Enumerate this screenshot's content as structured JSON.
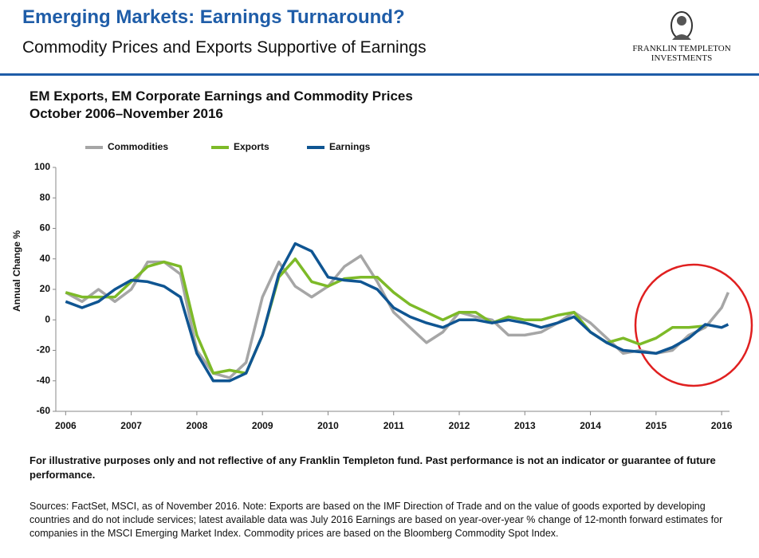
{
  "header": {
    "title": "Emerging Markets: Earnings Turnaround?",
    "subtitle": "Commodity Prices and Exports Supportive of Earnings",
    "logo_line1": "FRANKLIN TEMPLETON",
    "logo_line2": "INVESTMENTS"
  },
  "chart_data": {
    "type": "line",
    "title": "EM Exports, EM Corporate Earnings and Commodity Prices",
    "subtitle": "October 2006–November 2016",
    "ylabel": "Annual Change %",
    "x": [
      2006,
      2006.25,
      2006.5,
      2006.75,
      2007,
      2007.25,
      2007.5,
      2007.75,
      2008,
      2008.25,
      2008.5,
      2008.75,
      2009,
      2009.25,
      2009.5,
      2009.75,
      2010,
      2010.25,
      2010.5,
      2010.75,
      2011,
      2011.25,
      2011.5,
      2011.75,
      2012,
      2012.25,
      2012.5,
      2012.75,
      2013,
      2013.25,
      2013.5,
      2013.75,
      2014,
      2014.25,
      2014.5,
      2014.75,
      2015,
      2015.25,
      2015.5,
      2015.75,
      2016,
      2016.1
    ],
    "series": [
      {
        "name": "Commodities",
        "color": "#a6a6a6",
        "values": [
          18,
          12,
          20,
          12,
          20,
          38,
          38,
          30,
          -20,
          -35,
          -38,
          -28,
          15,
          38,
          22,
          15,
          22,
          35,
          42,
          25,
          5,
          -5,
          -15,
          -8,
          5,
          2,
          0,
          -10,
          -10,
          -8,
          -2,
          5,
          -2,
          -12,
          -22,
          -20,
          -22,
          -20,
          -10,
          -5,
          8,
          18
        ]
      },
      {
        "name": "Exports",
        "color": "#7dba28",
        "values": [
          18,
          15,
          15,
          15,
          25,
          35,
          38,
          35,
          -10,
          -35,
          -33,
          -35,
          -10,
          28,
          40,
          25,
          22,
          27,
          28,
          28,
          18,
          10,
          5,
          0,
          5,
          5,
          -2,
          2,
          0,
          0,
          3,
          5,
          -8,
          -15,
          -12,
          -16,
          -12,
          -5,
          -5,
          -4,
          null,
          null
        ]
      },
      {
        "name": "Earnings",
        "color": "#0f5592",
        "values": [
          12,
          8,
          12,
          20,
          26,
          25,
          22,
          15,
          -22,
          -40,
          -40,
          -35,
          -10,
          30,
          50,
          45,
          28,
          26,
          25,
          20,
          8,
          2,
          -2,
          -5,
          0,
          0,
          -2,
          0,
          -2,
          -5,
          -2,
          2,
          -8,
          -15,
          -20,
          -21,
          -22,
          -18,
          -12,
          -3,
          -5,
          -3
        ]
      }
    ],
    "xlim": [
      2005.85,
      2016.12
    ],
    "xticks": [
      2006,
      2007,
      2008,
      2009,
      2010,
      2011,
      2012,
      2013,
      2014,
      2015,
      2016
    ],
    "ylim": [
      -60,
      100
    ],
    "yticks": [
      -60,
      -40,
      -20,
      0,
      20,
      40,
      60,
      80,
      100
    ],
    "grid": false
  },
  "footer": {
    "disclaimer": "For illustrative purposes only and not reflective of any Franklin Templeton fund. Past performance is not an indicator or guarantee of future performance.",
    "sources": "Sources: FactSet, MSCI, as of November 2016. Note: Exports are based on the IMF Direction of Trade and on the value of goods exported by developing countries and do not include services; latest available data was July 2016 Earnings are based on year-over-year % change of 12-month forward estimates for companies in the MSCI Emerging Market Index. Commodity prices are based on the Bloomberg Commodity Spot Index."
  }
}
